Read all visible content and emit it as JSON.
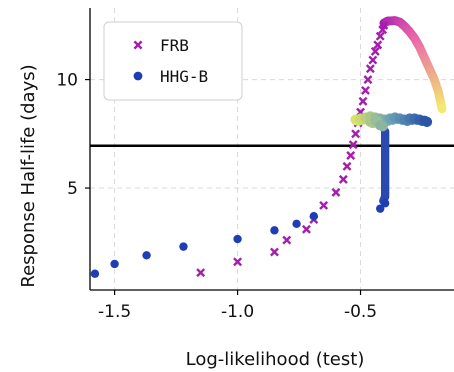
{
  "chart_data": {
    "type": "scatter",
    "xlabel": "Log-likelihood (test)",
    "ylabel": "Response Half-life (days)",
    "xlim": [
      -1.6,
      -0.12
    ],
    "ylim": [
      0.3,
      13.3
    ],
    "xticks": [
      -1.5,
      -1.0,
      -0.5
    ],
    "xtick_labels": [
      "-1.5",
      "-1.0",
      "-0.5"
    ],
    "yticks": [
      5,
      10
    ],
    "ytick_labels": [
      "5",
      "10"
    ],
    "grid": true,
    "hline": {
      "y": 6.95,
      "color": "#000000"
    },
    "legend": {
      "placement": "top-left",
      "entries": [
        {
          "label": "FRB",
          "marker": "x",
          "color": "#a61caf"
        },
        {
          "label": "HHG-B",
          "marker": "circle",
          "color": "#1f3eb4"
        }
      ]
    },
    "series": [
      {
        "name": "FRB",
        "marker": "x",
        "color": "#a61caf",
        "points": [
          [
            -1.15,
            1.1
          ],
          [
            -1.0,
            1.6
          ],
          [
            -0.85,
            2.05
          ],
          [
            -0.8,
            2.6
          ],
          [
            -0.72,
            3.1
          ],
          [
            -0.69,
            3.55
          ],
          [
            -0.65,
            4.2
          ],
          [
            -0.6,
            4.8
          ],
          [
            -0.57,
            5.4
          ],
          [
            -0.555,
            6.0
          ],
          [
            -0.54,
            6.5
          ],
          [
            -0.53,
            7.0
          ],
          [
            -0.52,
            7.5
          ],
          [
            -0.51,
            8.0
          ],
          [
            -0.5,
            8.5
          ],
          [
            -0.49,
            9.0
          ],
          [
            -0.48,
            9.5
          ],
          [
            -0.47,
            10.0
          ],
          [
            -0.46,
            10.5
          ],
          [
            -0.45,
            10.9
          ],
          [
            -0.44,
            11.3
          ],
          [
            -0.43,
            11.6
          ],
          [
            -0.42,
            12.0
          ],
          [
            -0.41,
            12.3
          ],
          [
            -0.405,
            12.5
          ]
        ]
      },
      {
        "name": "HHG-B",
        "marker": "circle",
        "color": "#1f3eb4",
        "points": [
          [
            -1.58,
            1.05
          ],
          [
            -1.5,
            1.5
          ],
          [
            -1.37,
            1.9
          ],
          [
            -1.22,
            2.3
          ],
          [
            -1.0,
            2.65
          ],
          [
            -0.85,
            3.05
          ],
          [
            -0.76,
            3.35
          ],
          [
            -0.69,
            3.7
          ],
          [
            -0.42,
            4.05
          ],
          [
            -0.4,
            4.3
          ]
        ]
      },
      {
        "name": "",
        "marker": "circle",
        "color_scale": [
          "#a61caf",
          "#ea6aa8",
          "#f3eb6e"
        ],
        "description_points_on_arc": [
          [
            -0.405,
            12.6
          ],
          [
            -0.39,
            12.7
          ],
          [
            -0.36,
            12.72
          ],
          [
            -0.34,
            12.65
          ],
          [
            -0.32,
            12.45
          ],
          [
            -0.3,
            12.2
          ],
          [
            -0.28,
            11.9
          ],
          [
            -0.26,
            11.5
          ],
          [
            -0.24,
            11.0
          ],
          [
            -0.22,
            10.5
          ],
          [
            -0.2,
            10.0
          ],
          [
            -0.185,
            9.5
          ],
          [
            -0.175,
            9.0
          ],
          [
            -0.168,
            8.6
          ]
        ]
      },
      {
        "name": "",
        "marker": "circle",
        "color_scale": [
          "#dbe26a",
          "#6aa3b5",
          "#2b56a8"
        ],
        "cluster_points": [
          [
            -0.52,
            8.15
          ],
          [
            -0.5,
            8.2
          ],
          [
            -0.48,
            8.25
          ],
          [
            -0.46,
            8.3
          ],
          [
            -0.44,
            8.25
          ],
          [
            -0.42,
            8.2
          ],
          [
            -0.4,
            8.15
          ],
          [
            -0.38,
            8.2
          ],
          [
            -0.36,
            8.25
          ],
          [
            -0.34,
            8.2
          ],
          [
            -0.32,
            8.15
          ],
          [
            -0.3,
            8.2
          ],
          [
            -0.28,
            8.2
          ],
          [
            -0.26,
            8.15
          ],
          [
            -0.24,
            8.1
          ],
          [
            -0.46,
            8.05
          ],
          [
            -0.44,
            8.1
          ],
          [
            -0.42,
            7.9
          ]
        ]
      },
      {
        "name": "",
        "marker": "circle",
        "color": "#2a4ab0",
        "column_points": [
          [
            -0.4,
            7.6
          ],
          [
            -0.4,
            7.3
          ],
          [
            -0.4,
            7.0
          ],
          [
            -0.4,
            6.7
          ],
          [
            -0.4,
            6.4
          ],
          [
            -0.4,
            6.1
          ],
          [
            -0.4,
            5.8
          ],
          [
            -0.4,
            5.5
          ],
          [
            -0.4,
            5.2
          ],
          [
            -0.4,
            4.9
          ],
          [
            -0.4,
            4.6
          ],
          [
            -0.41,
            4.35
          ]
        ]
      }
    ]
  }
}
